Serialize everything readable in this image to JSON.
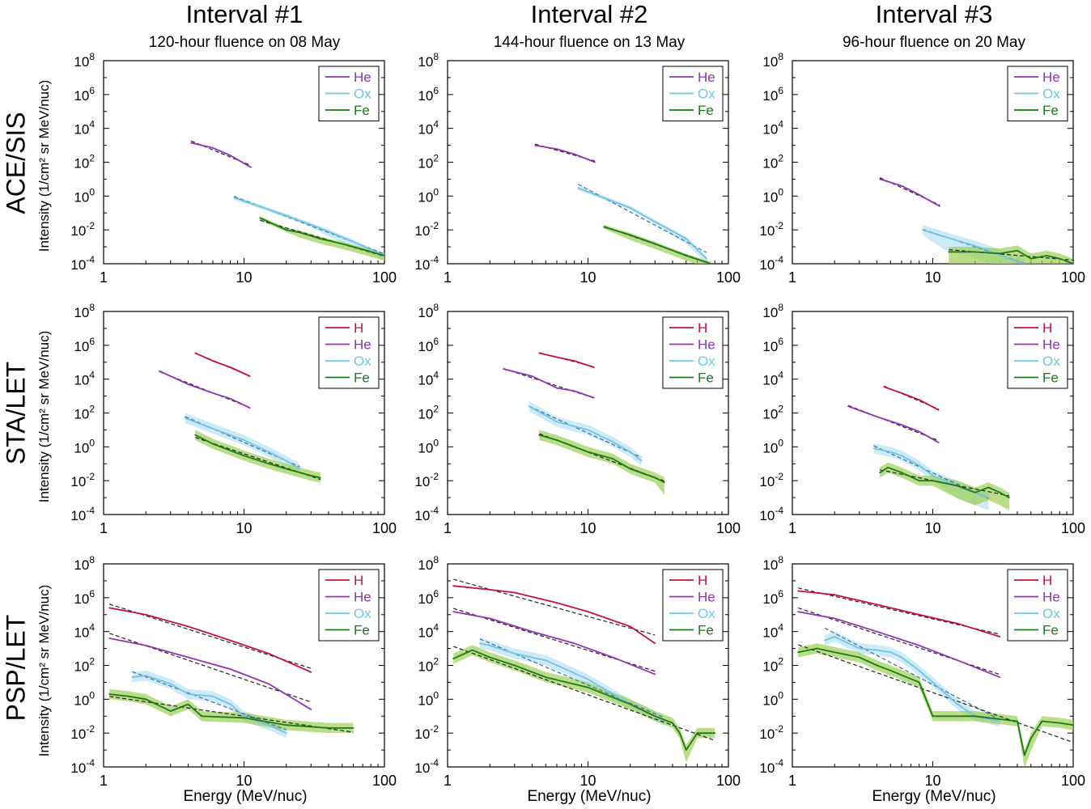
{
  "figure": {
    "columns": [
      {
        "title": "Interval #1",
        "subtitle": "120-hour fluence on 08 May"
      },
      {
        "title": "Interval #2",
        "subtitle": "144-hour fluence on 13 May"
      },
      {
        "title": "Interval #3",
        "subtitle": "96-hour fluence on 20 May"
      }
    ],
    "rows": [
      {
        "label": "ACE/SIS",
        "ylabel": "Intensity (1/cm² sr MeV/nuc)"
      },
      {
        "label": "STA/LET",
        "ylabel": "Intensity (1/cm² sr MeV/nuc)"
      },
      {
        "label": "PSP/LET",
        "ylabel": "Intensity (1/cm² sr MeV/nuc)"
      }
    ],
    "xlabel": "Energy (MeV/nuc)",
    "x_ticks": [
      "1",
      "10",
      "100"
    ],
    "y_tick_exponents": [
      "8",
      "6",
      "4",
      "2",
      "0",
      "-2",
      "-4"
    ],
    "y_tick_base": "10",
    "colors": {
      "H": "#c0143c",
      "He": "#8e35b0",
      "Ox": "#72c4e4",
      "Fe": "#1c7a1c",
      "Fe_band": "#9ccf55",
      "Ox_band": "#b9e1f2"
    }
  },
  "chart_data": [
    {
      "type": "line",
      "panel": "ACE/SIS – Interval #1",
      "xlabel": "Energy (MeV/nuc)",
      "ylabel": "Intensity (1/cm² sr MeV/nuc)",
      "xscale": "log",
      "yscale": "log",
      "xlim": [
        1,
        100
      ],
      "ylim": [
        0.0001,
        100000000
      ],
      "legend": "top-right",
      "series": [
        {
          "name": "He",
          "x": [
            4.2,
            6,
            8,
            11.2
          ],
          "y": [
            1400,
            700,
            250,
            50
          ]
        },
        {
          "name": "Ox",
          "x": [
            8.5,
            12,
            20,
            30,
            40,
            60,
            100
          ],
          "y": [
            0.8,
            0.3,
            0.07,
            0.02,
            0.008,
            0.002,
            0.0003
          ]
        },
        {
          "name": "Fe",
          "x": [
            13,
            20,
            25,
            35,
            50,
            70,
            100
          ],
          "y": [
            0.05,
            0.01,
            0.007,
            0.003,
            0.0015,
            0.0007,
            0.0003
          ]
        }
      ]
    },
    {
      "type": "line",
      "panel": "ACE/SIS – Interval #2",
      "xlabel": "Energy (MeV/nuc)",
      "ylabel": "Intensity (1/cm² sr MeV/nuc)",
      "xscale": "log",
      "yscale": "log",
      "xlim": [
        1,
        100
      ],
      "ylim": [
        0.0001,
        100000000
      ],
      "legend": "top-right",
      "series": [
        {
          "name": "He",
          "x": [
            4.2,
            6,
            8,
            11.2
          ],
          "y": [
            1000,
            600,
            300,
            100
          ]
        },
        {
          "name": "Ox",
          "x": [
            8.5,
            12,
            20,
            30,
            50,
            70
          ],
          "y": [
            3,
            1,
            0.2,
            0.03,
            0.003,
            0.0002
          ]
        },
        {
          "name": "Fe",
          "x": [
            13,
            20,
            30,
            50,
            75
          ],
          "y": [
            0.015,
            0.005,
            0.0015,
            0.0003,
            0.0001
          ]
        }
      ]
    },
    {
      "type": "line",
      "panel": "ACE/SIS – Interval #3",
      "xlabel": "Energy (MeV/nuc)",
      "ylabel": "Intensity (1/cm² sr MeV/nuc)",
      "xscale": "log",
      "yscale": "log",
      "xlim": [
        1,
        100
      ],
      "ylim": [
        0.0001,
        100000000
      ],
      "legend": "top-right",
      "series": [
        {
          "name": "He",
          "x": [
            4.2,
            6,
            8,
            11.2
          ],
          "y": [
            10,
            4,
            1.2,
            0.25
          ]
        },
        {
          "name": "Ox",
          "x": [
            8.5,
            12,
            18,
            25,
            35,
            45
          ],
          "y": [
            0.01,
            0.004,
            0.0015,
            0.0006,
            0.0002,
            0.0001
          ]
        },
        {
          "name": "Fe",
          "x": [
            13,
            20,
            30,
            40,
            50,
            65,
            80,
            100
          ],
          "y": [
            0.0005,
            0.0005,
            0.0004,
            0.0006,
            0.0002,
            0.0003,
            0.0002,
            0.0001
          ]
        }
      ]
    },
    {
      "type": "line",
      "panel": "STA/LET – Interval #1",
      "xlabel": "Energy (MeV/nuc)",
      "ylabel": "Intensity (1/cm² sr MeV/nuc)",
      "xscale": "log",
      "yscale": "log",
      "xlim": [
        1,
        100
      ],
      "ylim": [
        0.0001,
        100000000
      ],
      "legend": "top-right",
      "series": [
        {
          "name": "H",
          "x": [
            4.5,
            6,
            8,
            11
          ],
          "y": [
            350000,
            120000,
            50000,
            15000
          ]
        },
        {
          "name": "He",
          "x": [
            2.5,
            4,
            6,
            8,
            11
          ],
          "y": [
            30000,
            5000,
            1500,
            700,
            200
          ]
        },
        {
          "name": "Ox",
          "x": [
            3.8,
            6,
            10,
            15,
            20,
            25
          ],
          "y": [
            50,
            12,
            2.5,
            0.5,
            0.15,
            0.05
          ]
        },
        {
          "name": "Fe",
          "x": [
            4.5,
            6,
            10,
            15,
            20,
            30,
            35
          ],
          "y": [
            5,
            1.5,
            0.3,
            0.1,
            0.05,
            0.02,
            0.015
          ]
        }
      ]
    },
    {
      "type": "line",
      "panel": "STA/LET – Interval #2",
      "xlabel": "Energy (MeV/nuc)",
      "ylabel": "Intensity (1/cm² sr MeV/nuc)",
      "xscale": "log",
      "yscale": "log",
      "xlim": [
        1,
        100
      ],
      "ylim": [
        0.0001,
        100000000
      ],
      "legend": "top-right",
      "series": [
        {
          "name": "H",
          "x": [
            4.5,
            6,
            8,
            11
          ],
          "y": [
            350000,
            200000,
            120000,
            50000
          ]
        },
        {
          "name": "He",
          "x": [
            2.5,
            4,
            6,
            8,
            11
          ],
          "y": [
            40000,
            15000,
            3000,
            2000,
            800
          ]
        },
        {
          "name": "Ox",
          "x": [
            3.8,
            6,
            10,
            15,
            20,
            24
          ],
          "y": [
            250,
            30,
            10,
            2,
            0.5,
            0.15
          ]
        },
        {
          "name": "Fe",
          "x": [
            4.5,
            6,
            10,
            15,
            20,
            30,
            35
          ],
          "y": [
            5,
            2.5,
            0.5,
            0.2,
            0.05,
            0.015,
            0.008
          ]
        }
      ]
    },
    {
      "type": "line",
      "panel": "STA/LET – Interval #3",
      "xlabel": "Energy (MeV/nuc)",
      "ylabel": "Intensity (1/cm² sr MeV/nuc)",
      "xscale": "log",
      "yscale": "log",
      "xlim": [
        1,
        100
      ],
      "ylim": [
        0.0001,
        100000000
      ],
      "legend": "top-right",
      "series": [
        {
          "name": "H",
          "x": [
            4.5,
            6,
            8,
            11
          ],
          "y": [
            3500,
            1500,
            600,
            150
          ]
        },
        {
          "name": "He",
          "x": [
            2.5,
            4,
            6,
            8,
            11
          ],
          "y": [
            250,
            60,
            20,
            8,
            1.8
          ]
        },
        {
          "name": "Ox",
          "x": [
            3.8,
            5,
            6,
            8,
            10,
            15,
            20,
            25
          ],
          "y": [
            0.8,
            0.5,
            0.3,
            0.08,
            0.02,
            0.005,
            0.002,
            0.001
          ]
        },
        {
          "name": "Fe",
          "x": [
            4.2,
            4.8,
            6,
            8,
            10,
            15,
            20,
            25,
            30,
            35
          ],
          "y": [
            0.03,
            0.06,
            0.03,
            0.01,
            0.01,
            0.005,
            0.002,
            0.004,
            0.002,
            0.001
          ]
        }
      ]
    },
    {
      "type": "line",
      "panel": "PSP/LET – Interval #1",
      "xlabel": "Energy (MeV/nuc)",
      "ylabel": "Intensity (1/cm² sr MeV/nuc)",
      "xscale": "log",
      "yscale": "log",
      "xlim": [
        1,
        100
      ],
      "ylim": [
        0.0001,
        100000000
      ],
      "legend": "top-right",
      "series": [
        {
          "name": "H",
          "x": [
            1.1,
            2,
            4,
            8,
            15,
            30
          ],
          "y": [
            250000,
            100000,
            20000,
            3000,
            500,
            40
          ]
        },
        {
          "name": "He",
          "x": [
            1.1,
            2,
            4,
            8,
            15,
            30
          ],
          "y": [
            4000,
            1500,
            300,
            60,
            8,
            0.25
          ]
        },
        {
          "name": "Ox",
          "x": [
            1.6,
            2,
            3,
            4,
            6,
            8,
            10,
            15,
            20
          ],
          "y": [
            20,
            25,
            8,
            2,
            1.5,
            0.5,
            0.1,
            0.03,
            0.01
          ]
        },
        {
          "name": "Fe",
          "x": [
            1.1,
            1.5,
            2,
            3,
            4,
            5,
            10,
            20,
            40,
            60
          ],
          "y": [
            2,
            1.5,
            1,
            0.2,
            0.5,
            0.1,
            0.08,
            0.03,
            0.02,
            0.02
          ]
        }
      ]
    },
    {
      "type": "line",
      "panel": "PSP/LET – Interval #2",
      "xlabel": "Energy (MeV/nuc)",
      "ylabel": "Intensity (1/cm² sr MeV/nuc)",
      "xscale": "log",
      "yscale": "log",
      "xlim": [
        1,
        100
      ],
      "ylim": [
        0.0001,
        100000000
      ],
      "legend": "top-right",
      "series": [
        {
          "name": "H",
          "x": [
            1.1,
            2,
            3,
            6,
            10,
            20,
            30
          ],
          "y": [
            5000000,
            3000000,
            2000000,
            500000,
            150000,
            20000,
            2000
          ]
        },
        {
          "name": "He",
          "x": [
            1.1,
            2,
            4,
            8,
            15,
            30
          ],
          "y": [
            150000,
            60000,
            10000,
            2000,
            300,
            30
          ]
        },
        {
          "name": "Ox",
          "x": [
            1.7,
            2,
            3,
            5,
            10,
            15,
            20,
            30,
            35
          ],
          "y": [
            2000,
            1500,
            500,
            200,
            15,
            2,
            0.5,
            0.1,
            0.05
          ]
        },
        {
          "name": "Fe",
          "x": [
            1.1,
            1.5,
            2,
            3,
            5,
            10,
            20,
            30,
            40,
            45,
            50,
            60,
            80
          ],
          "y": [
            250,
            800,
            300,
            100,
            20,
            5,
            0.5,
            0.1,
            0.04,
            0.01,
            0.001,
            0.01,
            0.01
          ]
        }
      ]
    },
    {
      "type": "line",
      "panel": "PSP/LET – Interval #3",
      "xlabel": "Energy (MeV/nuc)",
      "ylabel": "Intensity (1/cm² sr MeV/nuc)",
      "xscale": "log",
      "yscale": "log",
      "xlim": [
        1,
        100
      ],
      "ylim": [
        0.0001,
        100000000
      ],
      "legend": "top-right",
      "series": [
        {
          "name": "H",
          "x": [
            1.1,
            2,
            4,
            8,
            15,
            30
          ],
          "y": [
            2500000,
            1500000,
            400000,
            100000,
            30000,
            5000
          ]
        },
        {
          "name": "He",
          "x": [
            1.1,
            2,
            4,
            8,
            15,
            30
          ],
          "y": [
            150000,
            60000,
            10000,
            1500,
            200,
            20
          ]
        },
        {
          "name": "Ox",
          "x": [
            1.7,
            2,
            3,
            4,
            5,
            6,
            8,
            10,
            15,
            20,
            30
          ],
          "y": [
            3000,
            5000,
            1000,
            800,
            600,
            300,
            50,
            10,
            0.5,
            0.1,
            0.05
          ]
        },
        {
          "name": "Fe",
          "x": [
            1.1,
            1.5,
            2,
            3,
            4,
            5,
            8,
            10,
            20,
            40,
            45,
            50,
            60,
            80,
            100
          ],
          "y": [
            600,
            1000,
            600,
            300,
            100,
            50,
            10,
            0.1,
            0.1,
            0.05,
            0.0005,
            0.005,
            0.05,
            0.04,
            0.03
          ]
        }
      ]
    }
  ]
}
